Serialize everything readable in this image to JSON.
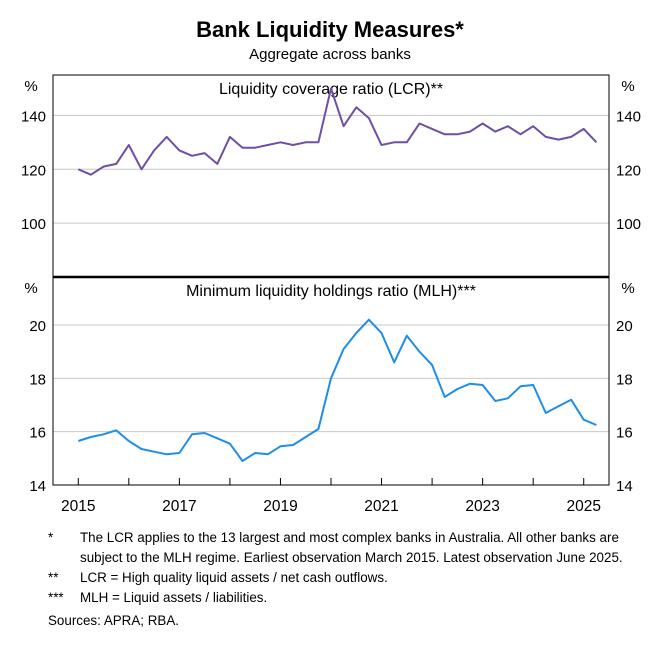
{
  "title": "Bank Liquidity Measures*",
  "subtitle": "Aggregate across banks",
  "colors": {
    "lcr": "#6f4ea8",
    "mlh": "#1e8ee6",
    "frame": "#000000",
    "grid": "#c8c8c8"
  },
  "chart_data": [
    {
      "type": "line",
      "title": "Liquidity coverage ratio (LCR)**",
      "left_unit": "%",
      "right_unit": "%",
      "ylim": [
        80,
        155
      ],
      "yticks": [
        100,
        120,
        140
      ],
      "grid": true,
      "xlim": [
        2014.5,
        2025.5
      ],
      "series": [
        {
          "x": [
            2015.0,
            2015.25,
            2015.5,
            2015.75,
            2016.0,
            2016.25,
            2016.5,
            2016.75,
            2017.0,
            2017.25,
            2017.5,
            2017.75,
            2018.0,
            2018.25,
            2018.5,
            2018.75,
            2019.0,
            2019.25,
            2019.5,
            2019.75,
            2020.0,
            2020.25,
            2020.5,
            2020.75,
            2021.0,
            2021.25,
            2021.5,
            2021.75,
            2022.0,
            2022.25,
            2022.5,
            2022.75,
            2023.0,
            2023.25,
            2023.5,
            2023.75,
            2024.0,
            2024.25,
            2024.5,
            2024.75,
            2025.0,
            2025.25
          ],
          "y": [
            120,
            118,
            121,
            122,
            129,
            120,
            127,
            132,
            127,
            125,
            126,
            122,
            132,
            128,
            128,
            129,
            130,
            129,
            130,
            130,
            150,
            136,
            143,
            139,
            129,
            130,
            130,
            137,
            135,
            133,
            133,
            134,
            137,
            134,
            136,
            133,
            136,
            132,
            131,
            132,
            135,
            130
          ]
        }
      ]
    },
    {
      "type": "line",
      "title": "Minimum liquidity holdings ratio (MLH)***",
      "left_unit": "%",
      "right_unit": "%",
      "ylim": [
        14,
        21.8
      ],
      "yticks": [
        14,
        16,
        18,
        20
      ],
      "grid": true,
      "xlim": [
        2014.5,
        2025.5
      ],
      "xticks": [
        2015,
        2017,
        2019,
        2021,
        2023,
        2025
      ],
      "series": [
        {
          "x": [
            2015.0,
            2015.25,
            2015.5,
            2015.75,
            2016.0,
            2016.25,
            2016.5,
            2016.75,
            2017.0,
            2017.25,
            2017.5,
            2017.75,
            2018.0,
            2018.25,
            2018.5,
            2018.75,
            2019.0,
            2019.25,
            2019.5,
            2019.75,
            2020.0,
            2020.25,
            2020.5,
            2020.75,
            2021.0,
            2021.25,
            2021.5,
            2021.75,
            2022.0,
            2022.25,
            2022.5,
            2022.75,
            2023.0,
            2023.25,
            2023.5,
            2023.75,
            2024.0,
            2024.25,
            2024.5,
            2024.75,
            2025.0,
            2025.25
          ],
          "y": [
            15.65,
            15.8,
            15.9,
            16.05,
            15.65,
            15.35,
            15.25,
            15.15,
            15.2,
            15.9,
            15.95,
            15.75,
            15.55,
            14.9,
            15.2,
            15.15,
            15.45,
            15.5,
            15.8,
            16.1,
            18.0,
            19.1,
            19.7,
            20.2,
            19.7,
            18.6,
            19.6,
            19.0,
            18.5,
            17.3,
            17.6,
            17.8,
            17.75,
            17.15,
            17.25,
            17.7,
            17.75,
            16.7,
            16.95,
            17.2,
            16.45,
            16.25
          ]
        }
      ]
    }
  ],
  "notes": [
    {
      "mark": "*",
      "text": "The LCR applies to the 13 largest and most complex banks in Australia. All other banks are subject to the MLH regime. Earliest observation March 2015. Latest observation June 2025."
    },
    {
      "mark": "**",
      "text": "LCR = High quality liquid assets / net cash outflows."
    },
    {
      "mark": "***",
      "text": "MLH = Liquid assets / liabilities."
    }
  ],
  "sources": "Sources: APRA; RBA."
}
